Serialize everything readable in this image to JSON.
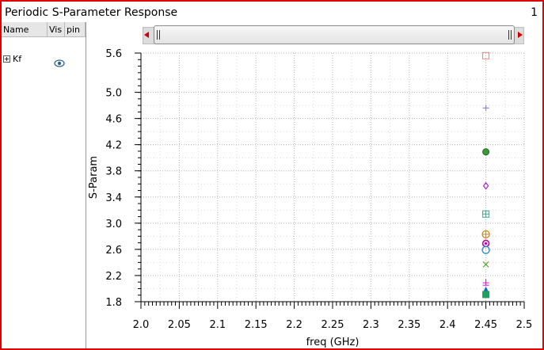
{
  "window": {
    "title": "Periodic S-Parameter Response",
    "number": "1"
  },
  "panel": {
    "columns": [
      "Name",
      "Vis",
      "pin"
    ],
    "items": [
      {
        "label": "Kf",
        "visible": true
      }
    ]
  },
  "chart_data": {
    "type": "scatter",
    "xlabel": "freq (GHz)",
    "ylabel": "S-Param",
    "xlim": [
      2.0,
      2.5
    ],
    "ylim": [
      1.8,
      5.6
    ],
    "xticks": [
      "2.0",
      "2.05",
      "2.1",
      "2.15",
      "2.2",
      "2.25",
      "2.3",
      "2.35",
      "2.4",
      "2.45",
      "2.5"
    ],
    "yticks": [
      "1.8",
      "2.2",
      "2.6",
      "3.0",
      "3.4",
      "3.8",
      "4.2",
      "4.6",
      "5.0",
      "5.6"
    ],
    "grid": true,
    "series": [
      {
        "marker": "square-open",
        "color": "#f08080",
        "x": 2.45,
        "y": 5.56
      },
      {
        "marker": "plus",
        "color": "#8a8ae0",
        "x": 2.45,
        "y": 4.76
      },
      {
        "marker": "circle-filled",
        "color": "#3a9a3a",
        "x": 2.45,
        "y": 4.09
      },
      {
        "marker": "diamond-open",
        "color": "#a020c0",
        "x": 2.45,
        "y": 3.57
      },
      {
        "marker": "square-plus",
        "color": "#20b090",
        "x": 2.45,
        "y": 3.14
      },
      {
        "marker": "circle-plus",
        "color": "#d08000",
        "x": 2.45,
        "y": 2.83
      },
      {
        "marker": "circle-dot",
        "color": "#c000a0",
        "x": 2.45,
        "y": 2.69
      },
      {
        "marker": "circle-open",
        "color": "#2090d0",
        "x": 2.45,
        "y": 2.59
      },
      {
        "marker": "x",
        "color": "#60a040",
        "x": 2.45,
        "y": 2.37
      },
      {
        "marker": "plus-bar",
        "color": "#e020e0",
        "x": 2.45,
        "y": 2.1
      },
      {
        "marker": "triangle-filled",
        "color": "#1060d0",
        "x": 2.45,
        "y": 1.97
      },
      {
        "marker": "square-filled",
        "color": "#20a060",
        "x": 2.45,
        "y": 1.91
      }
    ]
  }
}
